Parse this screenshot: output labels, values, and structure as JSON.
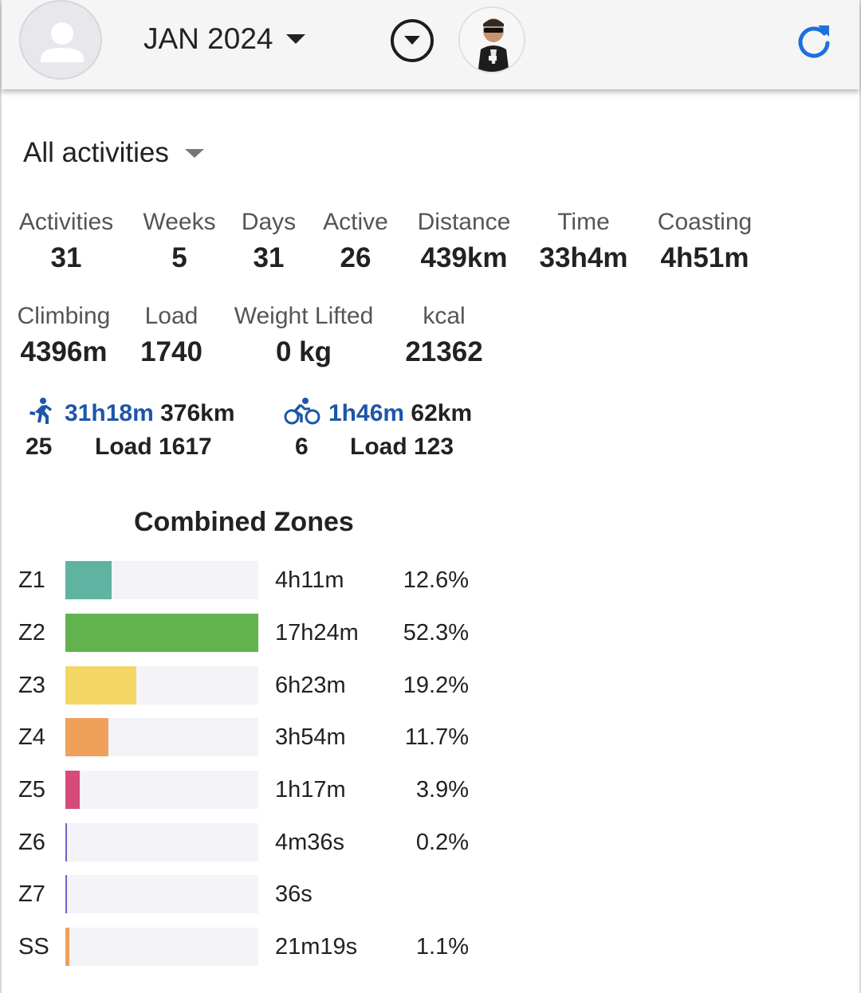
{
  "header": {
    "month_label": "JAN 2024",
    "icons": {
      "avatar": "person-icon",
      "month_dropdown": "caret-down-icon",
      "options": "circle-chevron-down-icon",
      "profile": "profile-photo",
      "refresh": "refresh-icon"
    },
    "accent_color": "#1e6fd9"
  },
  "filter": {
    "label": "All activities"
  },
  "stats_row1": [
    {
      "label": "Activities",
      "value": "31"
    },
    {
      "label": "Weeks",
      "value": "5"
    },
    {
      "label": "Days",
      "value": "31"
    },
    {
      "label": "Active",
      "value": "26"
    },
    {
      "label": "Distance",
      "value": "439km"
    },
    {
      "label": "Time",
      "value": "33h4m"
    },
    {
      "label": "Coasting",
      "value": "4h51m"
    }
  ],
  "stats_row2": [
    {
      "label": "Climbing",
      "value": "4396m"
    },
    {
      "label": "Load",
      "value": "1740"
    },
    {
      "label": "Weight Lifted",
      "value": "0 kg"
    },
    {
      "label": "kcal",
      "value": "21362"
    }
  ],
  "sports": [
    {
      "icon": "running-icon",
      "time": "31h18m",
      "distance": "376km",
      "count": "25",
      "load": "Load 1617"
    },
    {
      "icon": "cycling-icon",
      "time": "1h46m",
      "distance": "62km",
      "count": "6",
      "load": "Load 123"
    }
  ],
  "zones": {
    "title": "Combined Zones",
    "rows": [
      {
        "zone": "Z1",
        "time": "4h11m",
        "pct": "12.6%",
        "fraction": 0.24,
        "color": "#5fb3a1"
      },
      {
        "zone": "Z2",
        "time": "17h24m",
        "pct": "52.3%",
        "fraction": 1.0,
        "color": "#62b34e"
      },
      {
        "zone": "Z3",
        "time": "6h23m",
        "pct": "19.2%",
        "fraction": 0.367,
        "color": "#f4d664"
      },
      {
        "zone": "Z4",
        "time": "3h54m",
        "pct": "11.7%",
        "fraction": 0.224,
        "color": "#efa05a"
      },
      {
        "zone": "Z5",
        "time": "1h17m",
        "pct": "3.9%",
        "fraction": 0.075,
        "color": "#d64b78"
      },
      {
        "zone": "Z6",
        "time": "4m36s",
        "pct": "0.2%",
        "fraction": 0.004,
        "color": "#7a5fc0"
      },
      {
        "zone": "Z7",
        "time": "36s",
        "pct": "",
        "fraction": 0.002,
        "color": "#7a5fc0"
      },
      {
        "zone": "SS",
        "time": "21m19s",
        "pct": "1.1%",
        "fraction": 0.02,
        "color": "#efa05a"
      }
    ]
  }
}
